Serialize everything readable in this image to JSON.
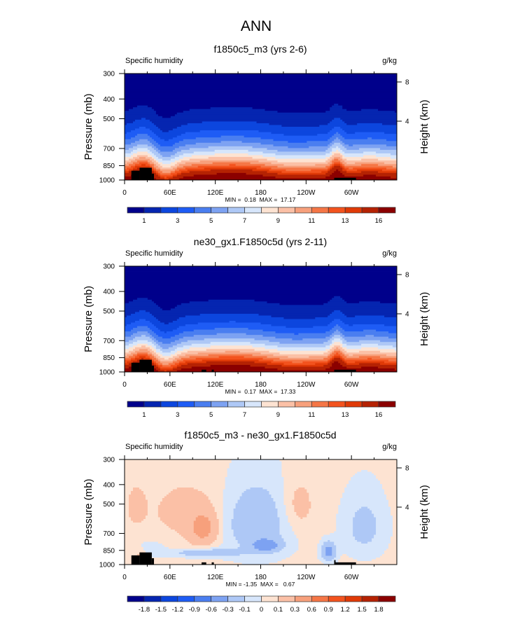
{
  "chart_data": [
    {
      "type": "heatmap",
      "page_title": "ANN",
      "title": "f1850c5_m3 (yrs 2-6)",
      "left_label": "Specific humidity",
      "right_label": "g/kg",
      "ylabel": "Pressure (mb)",
      "ylabel_right": "Height (km)",
      "xticks": [
        "0",
        "60E",
        "120E",
        "180",
        "120W",
        "60W"
      ],
      "xlim": [
        0,
        360
      ],
      "yticks": [
        "300",
        "400",
        "500",
        "700",
        "850",
        "1000"
      ],
      "ylim": [
        1000,
        300
      ],
      "yticks_right": [
        "8",
        "4"
      ],
      "minmax": "MIN =  0.18  MAX =  17.17",
      "min": 0.18,
      "max": 17.17,
      "levels": [
        1,
        2,
        3,
        4,
        5,
        6,
        7,
        8,
        9,
        10,
        11,
        12,
        13,
        14,
        16
      ],
      "level_labels": [
        "1",
        "",
        "3",
        "",
        "5",
        "",
        "7",
        "",
        "9",
        "",
        "11",
        "",
        "13",
        "",
        "16"
      ],
      "colors": [
        "#00008b",
        "#0525b0",
        "#0c46de",
        "#1e5cf5",
        "#4a7ef0",
        "#7da2f2",
        "#aec8f6",
        "#d7e6fb",
        "#fde3d2",
        "#fbc0a6",
        "#f7a07c",
        "#f57646",
        "#f3531e",
        "#e03a07",
        "#b52203",
        "#8b0000"
      ]
    },
    {
      "type": "heatmap",
      "title": "ne30_gx1.F1850c5d (yrs 2-11)",
      "left_label": "Specific humidity",
      "right_label": "g/kg",
      "ylabel": "Pressure (mb)",
      "ylabel_right": "Height (km)",
      "xticks": [
        "0",
        "60E",
        "120E",
        "180",
        "120W",
        "60W"
      ],
      "xlim": [
        0,
        360
      ],
      "yticks": [
        "300",
        "400",
        "500",
        "700",
        "850",
        "1000"
      ],
      "ylim": [
        1000,
        300
      ],
      "yticks_right": [
        "8",
        "4"
      ],
      "minmax": "MIN =  0.17  MAX =  17.33",
      "min": 0.17,
      "max": 17.33,
      "levels": [
        1,
        2,
        3,
        4,
        5,
        6,
        7,
        8,
        9,
        10,
        11,
        12,
        13,
        14,
        16
      ],
      "level_labels": [
        "1",
        "",
        "3",
        "",
        "5",
        "",
        "7",
        "",
        "9",
        "",
        "11",
        "",
        "13",
        "",
        "16"
      ],
      "colors": [
        "#00008b",
        "#0525b0",
        "#0c46de",
        "#1e5cf5",
        "#4a7ef0",
        "#7da2f2",
        "#aec8f6",
        "#d7e6fb",
        "#fde3d2",
        "#fbc0a6",
        "#f7a07c",
        "#f57646",
        "#f3531e",
        "#e03a07",
        "#b52203",
        "#8b0000"
      ]
    },
    {
      "type": "heatmap",
      "title": "f1850c5_m3 - ne30_gx1.F1850c5d",
      "left_label": "Specific humidity",
      "right_label": "g/kg",
      "ylabel": "Pressure (mb)",
      "ylabel_right": "Height (km)",
      "xticks": [
        "0",
        "60E",
        "120E",
        "180",
        "120W",
        "60W"
      ],
      "xlim": [
        0,
        360
      ],
      "yticks": [
        "300",
        "400",
        "500",
        "700",
        "850",
        "1000"
      ],
      "ylim": [
        1000,
        300
      ],
      "yticks_right": [
        "8",
        "4"
      ],
      "minmax": "MIN = -1.35  MAX =   0.67",
      "min": -1.35,
      "max": 0.67,
      "levels": [
        -1.8,
        -1.5,
        -1.2,
        -0.9,
        -0.6,
        -0.3,
        -0.1,
        0,
        0.1,
        0.3,
        0.6,
        0.9,
        1.2,
        1.5,
        1.8
      ],
      "level_labels": [
        "-1.8",
        "-1.5",
        "-1.2",
        "-0.9",
        "-0.6",
        "-0.3",
        "-0.1",
        "0",
        "0.1",
        "0.3",
        "0.6",
        "0.9",
        "1.2",
        "1.5",
        "1.8"
      ],
      "colors": [
        "#00008b",
        "#0525b0",
        "#0c46de",
        "#1e5cf5",
        "#4a7ef0",
        "#7da2f2",
        "#aec8f6",
        "#d7e6fb",
        "#fde3d2",
        "#fbc0a6",
        "#f7a07c",
        "#f57646",
        "#f3531e",
        "#e03a07",
        "#b52203",
        "#8b0000"
      ]
    }
  ]
}
